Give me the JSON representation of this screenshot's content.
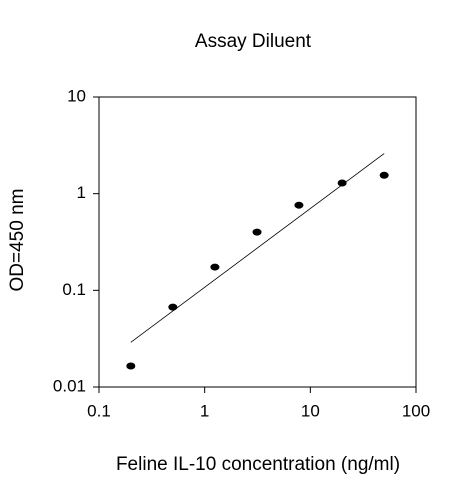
{
  "chart_data": {
    "type": "scatter",
    "title": "Assay Diluent",
    "x_label": "Feline IL-10 concentration (ng/ml)",
    "y_label": "OD=450 nm",
    "x": [
      0.2,
      0.5,
      1.25,
      3.13,
      7.8,
      20,
      50
    ],
    "values": [
      0.0165,
      0.067,
      0.174,
      0.4,
      0.76,
      1.29,
      1.55
    ],
    "color": "#000000",
    "trendline": {
      "x": [
        0.2,
        50
      ],
      "values": [
        0.029,
        2.6
      ]
    },
    "xlim": [
      0.1,
      100
    ],
    "ylim": [
      0.01,
      10
    ],
    "xticks": [
      0.1,
      1,
      10,
      100
    ],
    "yticks": [
      0.01,
      0.1,
      1,
      10
    ],
    "log_x": true,
    "log_y": true,
    "grid": false
  }
}
